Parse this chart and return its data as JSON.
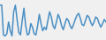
{
  "values": [
    78,
    78,
    20,
    18,
    22,
    45,
    28,
    18,
    65,
    78,
    50,
    25,
    20,
    48,
    72,
    38,
    20,
    22,
    42,
    35,
    22,
    20,
    38,
    60,
    42,
    28,
    35,
    30,
    48,
    65,
    55,
    38,
    32,
    45,
    60,
    52,
    38,
    30,
    42,
    52,
    48,
    38,
    32,
    40,
    50,
    58,
    62,
    52,
    40,
    38,
    48,
    58,
    55,
    45,
    38,
    45,
    55,
    52,
    42,
    35,
    42,
    50,
    45
  ],
  "line_color": "#4a8fc4",
  "bg_color": "#f0f0f0",
  "line_width": 1.1,
  "ylim": [
    10,
    88
  ]
}
